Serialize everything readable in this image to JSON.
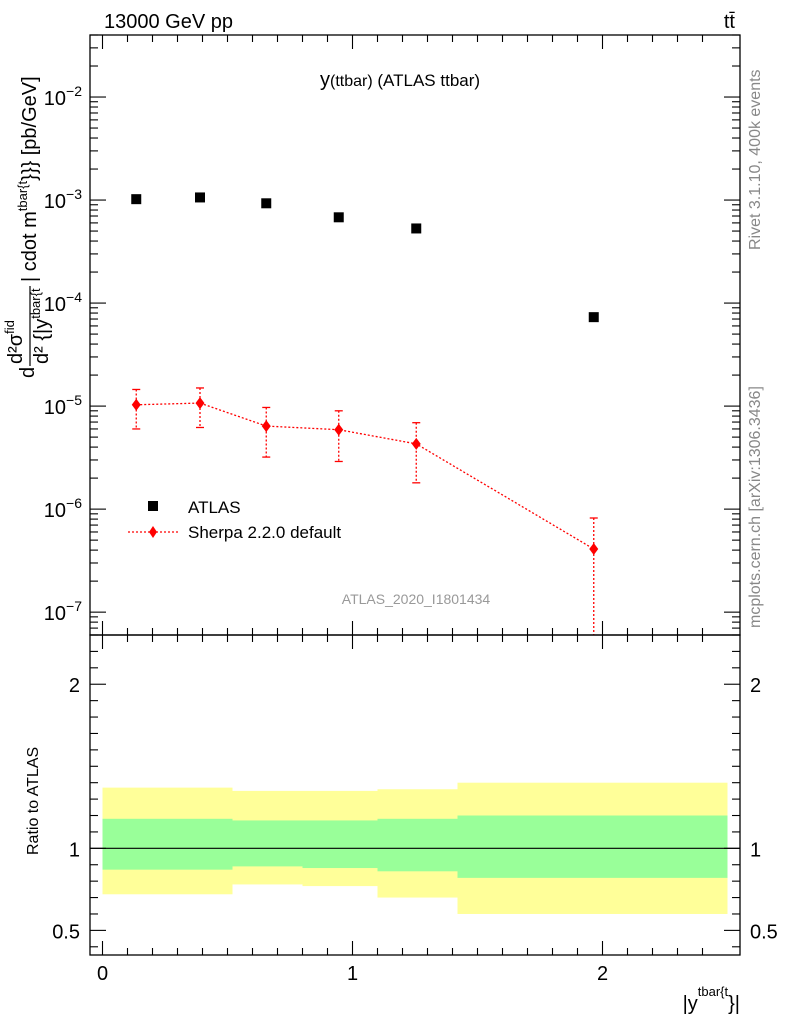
{
  "header": {
    "energy_label": "13000 GeV pp",
    "process_label": "tt̄"
  },
  "side_text": {
    "rivet": "Rivet 3.1.10,  400k events",
    "site": "mcplots.cern.ch [arXiv:1306.3436]"
  },
  "chart_data": [
    {
      "type": "scatter",
      "title": "y(ttbar) (ATLAS ttbar)",
      "title_main": "y",
      "title_sub": "(ttbar)",
      "title_rest": " (ATLAS ttbar)",
      "ylabel": "d²σ^fid / d²{|y^tbar{t}|} cdot m^tbar{t}}} [pb/GeV]",
      "ylabel_parts": {
        "d_left": "d",
        "num": "d²σ",
        "num_sup": "fid",
        "den": "d² {|y",
        "den_sup": "tbar{t",
        "rest": "| cdot m",
        "rest_sup": "tbar{t",
        "end": "}}} [pb/GeV]"
      },
      "xlabel": "|y^tbar{t}}|",
      "xlabel_parts": {
        "main": "|y",
        "sup": "tbar{t",
        "end": "}|"
      },
      "watermark": "ATLAS_2020_I1801434",
      "y_scale": "log",
      "ylim": [
        6e-08,
        0.04
      ],
      "xlim": [
        -0.05,
        2.55
      ],
      "x_ticks": [
        0,
        1,
        2
      ],
      "y_ticks": [
        1e-07,
        1e-06,
        1e-05,
        0.0001,
        0.001,
        0.01
      ],
      "y_tick_labels": [
        {
          "base": "10",
          "exp": "−7"
        },
        {
          "base": "10",
          "exp": "−6"
        },
        {
          "base": "10",
          "exp": "−5"
        },
        {
          "base": "10",
          "exp": "−4"
        },
        {
          "base": "10",
          "exp": "−3"
        },
        {
          "base": "10",
          "exp": "−2"
        }
      ],
      "legend": {
        "placement": "lower-left",
        "entries": [
          "ATLAS",
          "Sherpa 2.2.0 default"
        ]
      },
      "series": [
        {
          "name": "ATLAS",
          "color": "#000000",
          "marker": "square",
          "x": [
            0.135,
            0.39,
            0.655,
            0.945,
            1.255,
            1.965
          ],
          "y": [
            0.00102,
            0.00106,
            0.00093,
            0.00068,
            0.00053,
            7.3e-05
          ]
        },
        {
          "name": "Sherpa 2.2.0 default",
          "color": "#ff0000",
          "marker": "diamond",
          "x": [
            0.135,
            0.39,
            0.655,
            0.945,
            1.255,
            1.965
          ],
          "y": [
            1.03e-05,
            1.07e-05,
            6.4e-06,
            5.9e-06,
            4.3e-06,
            4.1e-07
          ],
          "y_low": [
            6e-06,
            6.2e-06,
            3.2e-06,
            2.9e-06,
            1.8e-06,
            5e-08
          ],
          "y_high": [
            1.45e-05,
            1.5e-05,
            9.7e-06,
            9e-06,
            6.9e-06,
            8.2e-07
          ]
        }
      ]
    },
    {
      "type": "area",
      "ylabel": "Ratio to ATLAS",
      "ylim": [
        0.35,
        2.3
      ],
      "xlim": [
        -0.05,
        2.55
      ],
      "x_ticks": [
        0,
        1,
        2
      ],
      "x_tick_labels": [
        "0",
        "1",
        "2"
      ],
      "y_ticks": [
        0.5,
        1,
        2
      ],
      "y_tick_labels": [
        "0.5",
        "1",
        "2"
      ],
      "reference_line": 1,
      "bins": [
        0.0,
        0.52,
        0.8,
        1.1,
        1.42,
        2.5
      ],
      "band_inner": {
        "color": "#99ff99",
        "low": [
          0.87,
          0.89,
          0.88,
          0.86,
          0.82
        ],
        "high": [
          1.18,
          1.17,
          1.17,
          1.18,
          1.2
        ]
      },
      "band_outer": {
        "color": "#ffff99",
        "low": [
          0.72,
          0.78,
          0.77,
          0.7,
          0.6
        ],
        "high": [
          1.37,
          1.35,
          1.35,
          1.36,
          1.4
        ]
      }
    }
  ]
}
